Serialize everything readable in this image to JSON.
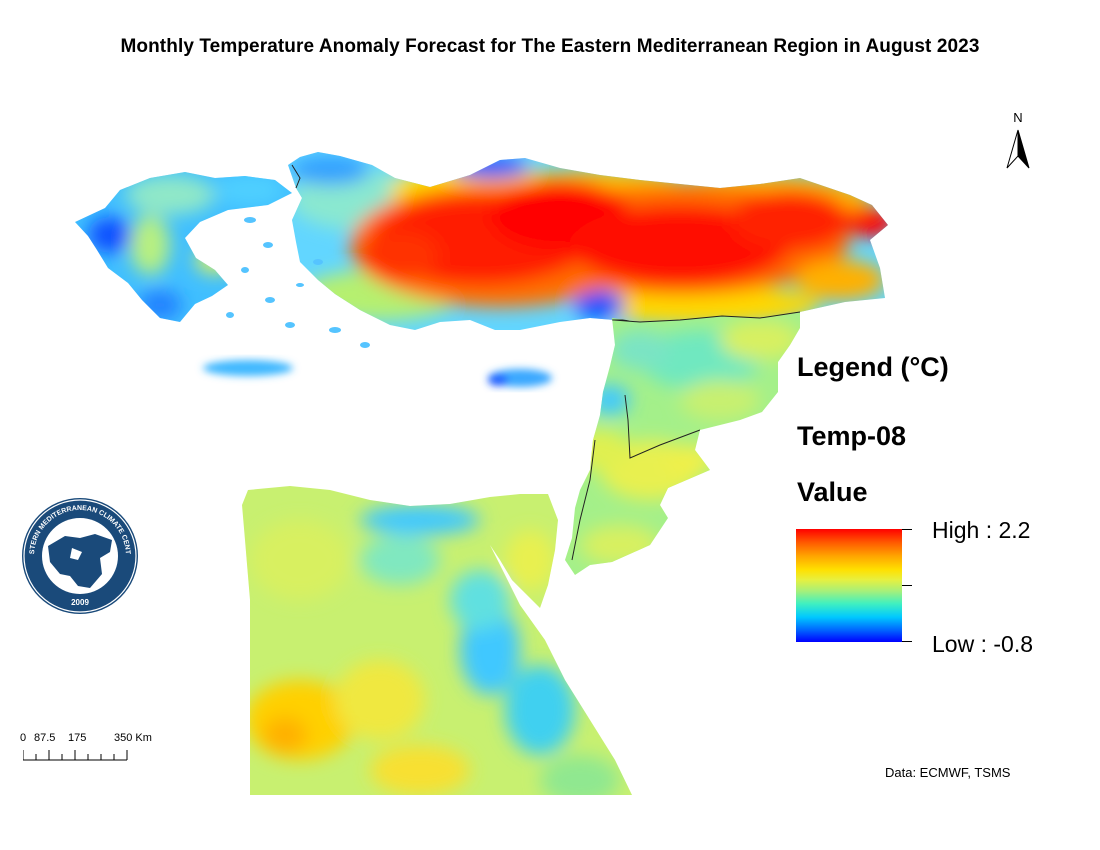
{
  "title": "Monthly Temperature Anomaly Forecast for The Eastern Mediterranean Region in August 2023",
  "north_arrow": {
    "label": "N"
  },
  "legend": {
    "heading": "Legend (°C)",
    "layer": "Temp-08",
    "field": "Value",
    "high_label": "High : 2.2",
    "low_label": "Low : -0.8",
    "high_value": 2.2,
    "low_value": -0.8,
    "colors": [
      "#ff0000",
      "#ffa500",
      "#ffe000",
      "#a6f07a",
      "#40f0c0",
      "#00c8ff",
      "#0000ff"
    ]
  },
  "scale_bar": {
    "labels": [
      "0",
      "87.5",
      "175",
      "350 Km"
    ]
  },
  "credit": "Data: ECMWF, TSMS",
  "logo": {
    "text": "EASTERN MEDITERRANEAN CLIMATE CENTRE",
    "year": "2009"
  }
}
